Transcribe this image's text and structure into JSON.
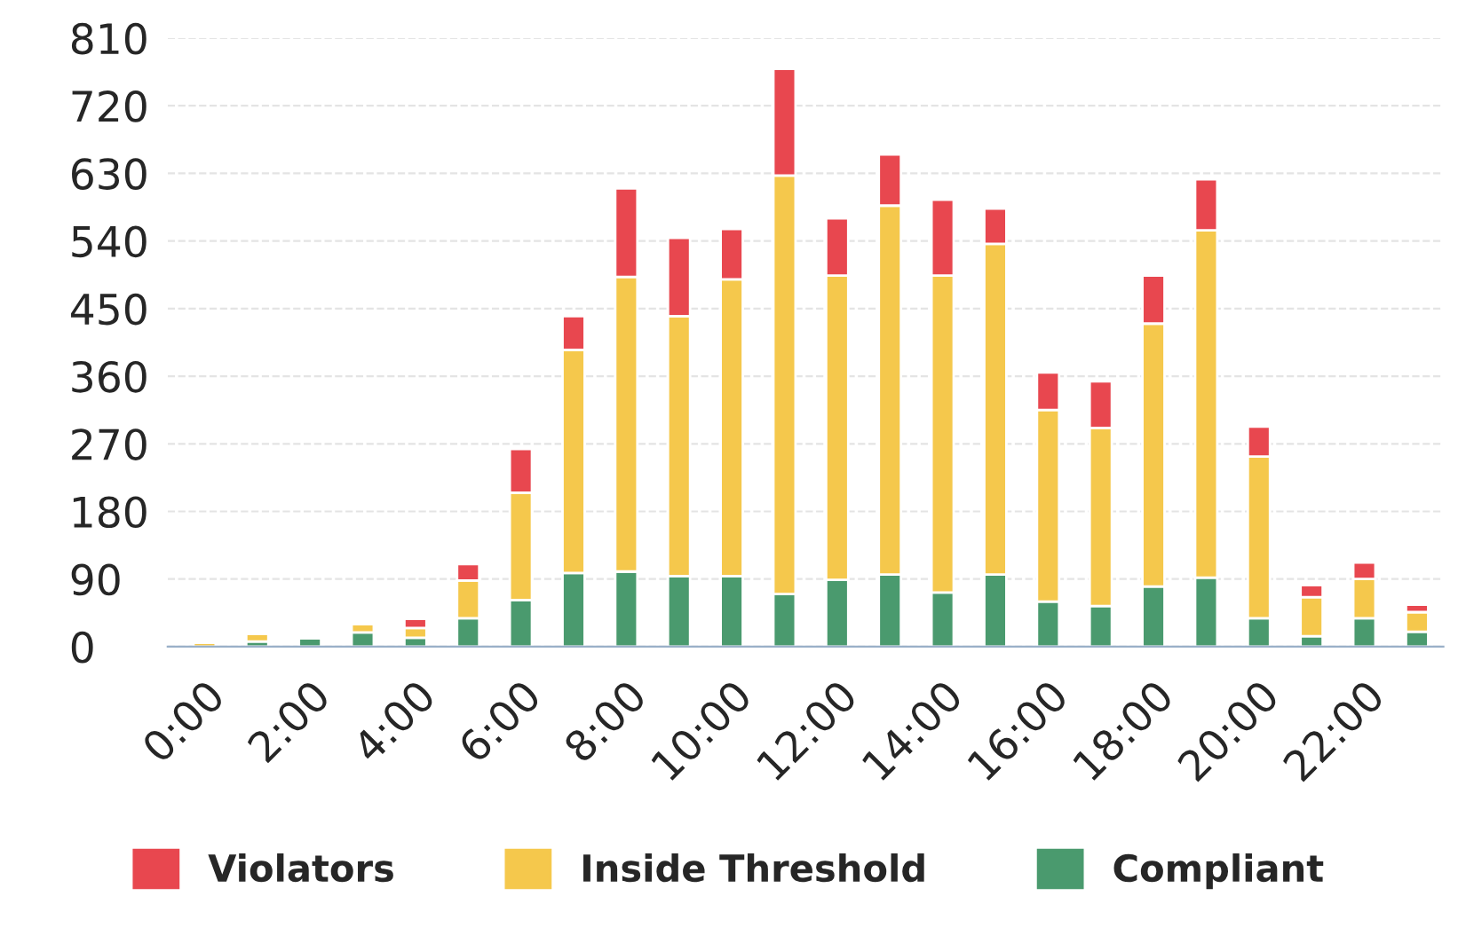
{
  "chart_data": {
    "type": "bar",
    "stacked": true,
    "categories": [
      "0:00",
      null,
      "2:00",
      null,
      "4:00",
      null,
      "6:00",
      null,
      "8:00",
      null,
      "10:00",
      null,
      "12:00",
      null,
      "14:00",
      null,
      "16:00",
      null,
      "18:00",
      null,
      "20:00",
      null,
      "22:00",
      null
    ],
    "series": [
      {
        "name": "Compliant",
        "color": "#4a9a6e",
        "values": [
          null,
          7,
          11,
          19,
          12,
          38,
          62,
          98,
          100,
          94,
          94,
          70,
          89,
          96,
          72,
          96,
          60,
          54,
          80,
          92,
          38,
          14,
          38,
          20
        ]
      },
      {
        "name": "Inside Threshold",
        "color": "#f5c84c",
        "values": [
          5,
          10,
          null,
          11,
          13,
          50,
          143,
          297,
          392,
          346,
          395,
          557,
          405,
          491,
          422,
          440,
          255,
          237,
          350,
          462,
          215,
          52,
          52,
          26
        ]
      },
      {
        "name": "Violators",
        "color": "#e8474f",
        "values": [
          null,
          null,
          null,
          null,
          12,
          22,
          58,
          45,
          118,
          104,
          67,
          142,
          76,
          68,
          101,
          47,
          50,
          62,
          64,
          68,
          40,
          16,
          22,
          10
        ]
      }
    ],
    "ylim": [
      0,
      810
    ],
    "yticks": [
      0,
      90,
      180,
      270,
      360,
      450,
      540,
      630,
      720,
      810
    ],
    "grid": "y",
    "legend": "bottom"
  }
}
